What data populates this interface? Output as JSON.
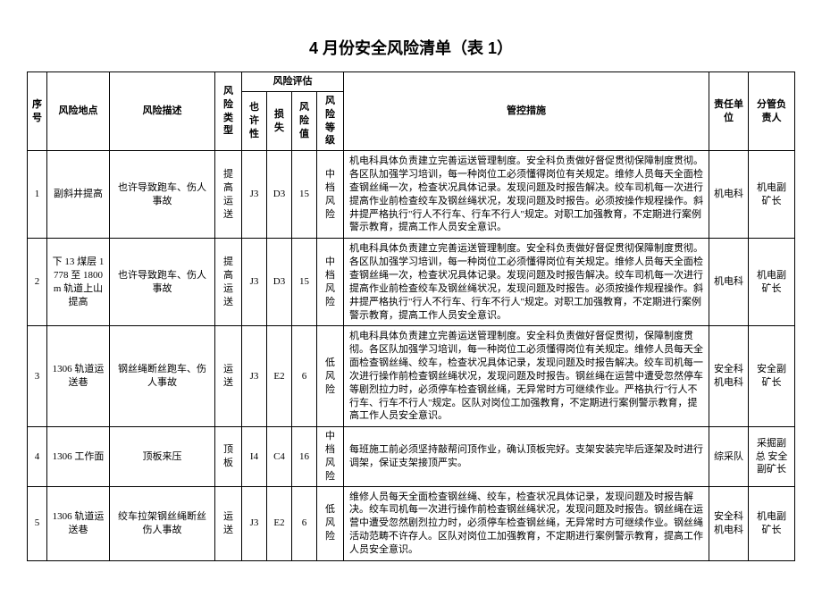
{
  "title": "4 月份安全风险清单（表 1）",
  "headers": {
    "seq": "序号",
    "location": "风险地点",
    "desc": "风险描述",
    "type": "风险类型",
    "assess_group": "风险评估",
    "possibility": "也许性",
    "loss": "损失",
    "value": "风险值",
    "level": "风险等级",
    "measures": "管控措施",
    "unit": "责任单位",
    "manager": "分管负责人"
  },
  "rows": [
    {
      "seq": "1",
      "location": "副斜井提高",
      "desc": "也许导致跑车、伤人事故",
      "type": "提高运送",
      "possibility": "J3",
      "loss": "D3",
      "value": "15",
      "level": "中档风险",
      "measures": "机电科具体负责建立完善运送管理制度。安全科负责做好督促贯彻保障制度贯彻。各区队加强学习培训，每一种岗位工必须懂得岗位有关规定。维修人员每天全面检查钢丝绳一次，检查状况具体记录。发现问题及时报告解决。绞车司机每一次进行提高作业前检查绞车及钢丝绳状况，发现问题及时报告。必须按操作规程操作。斜井提严格执行\"行人不行车、行车不行人\"规定。对职工加强教育，不定期进行案例警示教育，提高工作人员安全意识。",
      "unit": "机电科",
      "manager": "机电副矿长"
    },
    {
      "seq": "2",
      "location": "下 13 煤层 1778 至 1800m 轨道上山提高",
      "desc": "也许导致跑车、伤人事故",
      "type": "提高运送",
      "possibility": "J3",
      "loss": "D3",
      "value": "15",
      "level": "中档风险",
      "measures": "机电科具体负责建立完善运送管理制度。安全科负责做好督促贯彻保障制度贯彻。各区队加强学习培训，每一种岗位工必须懂得岗位有关规定。维修人员每天全面检查钢丝绳一次，检查状况具体记录。发现问题及时报告解决。绞车司机每一次进行提高作业前检查绞车及钢丝绳状况，发现问题及时报告。必须按操作规程操作。斜井提严格执行\"行人不行车、行车不行人\"规定。对职工加强教育，不定期进行案例警示教育，提高工作人员安全意识。",
      "unit": "机电科",
      "manager": "机电副矿长"
    },
    {
      "seq": "3",
      "location": "1306 轨道运送巷",
      "desc": "钢丝绳断丝跑车、伤人事故",
      "type": "运送",
      "possibility": "J3",
      "loss": "E2",
      "value": "6",
      "level": "低风险",
      "measures": "机电科具体负责建立完善运送管理制度。安全科负责做好督促贯彻，保障制度贯彻。各区队加强学习培训，每一种岗位工必须懂得岗位有关规定。维修人员每天全面检查钢丝绳、绞车，检查状况具体记录，发现问题及时报告解决。绞车司机每一次进行操作前检查钢丝绳状况，发现问题及时报告。钢丝绳在运营中遭受忽然停车等剧烈拉力时，必须停车检查钢丝绳，无异常时方可继续作业。严格执行\"行人不行车、行车不行人\"规定。区队对岗位工加强教育，不定期进行案例警示教育，提高工作人员安全意识。",
      "unit": "安全科 机电科",
      "manager": "安全副矿长"
    },
    {
      "seq": "4",
      "location": "1306 工作面",
      "desc": "顶板来压",
      "type": "顶板",
      "possibility": "I4",
      "loss": "C4",
      "value": "16",
      "level": "中档风险",
      "measures": "每班施工前必须坚持敲帮问顶作业，确认顶板完好。支架安装完毕后逐架及时进行调架，保证支架接顶严实。",
      "unit": "综采队",
      "manager": "采掘副总 安全副矿长"
    },
    {
      "seq": "5",
      "location": "1306 轨道运送巷",
      "desc": "绞车拉架钢丝绳断丝伤人事故",
      "type": "运送",
      "possibility": "J3",
      "loss": "E2",
      "value": "6",
      "level": "低风险",
      "measures": "维修人员每天全面检查钢丝绳、绞车，检查状况具体记录，发现问题及时报告解决。绞车司机每一次进行操作前检查钢丝绳状况，发现问题及时报告。钢丝绳在运营中遭受忽然剧烈拉力时，必须停车检查钢丝绳，无异常时方可继续作业。钢丝绳活动范畴不许存人。区队对岗位工加强教育，不定期进行案例警示教育，提高工作人员安全意识。",
      "unit": "安全科 机电科",
      "manager": "机电副矿长"
    }
  ]
}
